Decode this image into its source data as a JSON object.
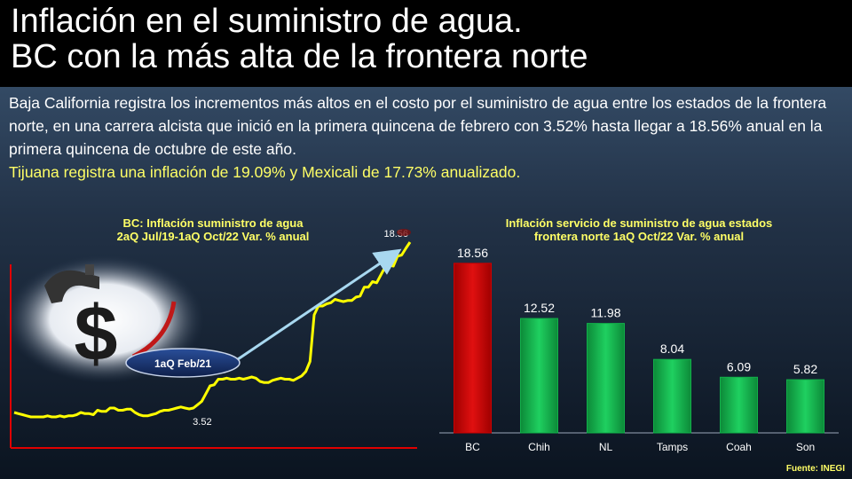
{
  "title": {
    "line1": "Inflación en el suministro de agua.",
    "line2": "BC con la más alta de la frontera norte"
  },
  "description": {
    "text": "Baja California registra los incrementos más altos en el costo por el suministro de agua entre los estados de la frontera norte, en una carrera alcista que inició en la primera quincena de febrero con 3.52% hasta llegar a 18.56% anual en la primera quincena de octubre de este año.",
    "highlight": "Tijuana registra una inflación de 19.09% y Mexicali de 17.73% anualizado."
  },
  "source": "Fuente: INEGI",
  "chart_data": [
    {
      "type": "line",
      "title": "BC: Inflación suministro de agua",
      "subtitle": "2aQ Jul/19-1aQ Oct/22 Var. % anual",
      "callout": "1aQ Feb/21",
      "start_label": "3.52",
      "end_label": "18.56",
      "line_color": "#ffff00",
      "values": [
        3.2,
        3.1,
        3.0,
        2.9,
        2.8,
        2.8,
        2.8,
        2.8,
        2.9,
        2.8,
        2.8,
        2.9,
        2.8,
        2.9,
        2.9,
        3.0,
        3.2,
        3.1,
        3.1,
        3.0,
        3.4,
        3.3,
        3.3,
        3.6,
        3.6,
        3.4,
        3.4,
        3.5,
        3.5,
        3.2,
        3.0,
        2.9,
        2.9,
        3.0,
        3.1,
        3.3,
        3.4,
        3.4,
        3.5,
        3.6,
        3.7,
        3.6,
        3.52,
        3.6,
        3.9,
        4.2,
        4.9,
        5.6,
        5.7,
        6.2,
        6.2,
        6.3,
        6.2,
        6.2,
        6.3,
        6.2,
        6.3,
        6.4,
        6.3,
        6.0,
        5.9,
        5.9,
        6.1,
        6.2,
        6.3,
        6.2,
        6.2,
        6.1,
        6.3,
        6.5,
        6.9,
        7.8,
        12.0,
        12.8,
        12.8,
        13.0,
        13.1,
        13.4,
        13.3,
        13.2,
        13.3,
        13.3,
        13.6,
        13.7,
        14.5,
        14.5,
        15.0,
        14.9,
        15.6,
        16.3,
        16.5,
        16.4,
        17.3,
        17.4,
        18.0,
        18.56
      ],
      "ylim": [
        0,
        20
      ]
    },
    {
      "type": "bar",
      "title": "Inflación servicio de suministro de agua estados",
      "subtitle": "frontera norte 1aQ Oct/22 Var. % anual",
      "categories": [
        "BC",
        "Chih",
        "NL",
        "Tamps",
        "Coah",
        "Son"
      ],
      "values": [
        18.56,
        12.52,
        11.98,
        8.04,
        6.09,
        5.82
      ],
      "value_labels": [
        "18.56",
        "12.52",
        "11.98",
        "8.04",
        "6.09",
        "5.82"
      ],
      "colors": [
        "#cc0000",
        "#12b04a",
        "#12b04a",
        "#12b04a",
        "#12b04a",
        "#12b04a"
      ],
      "ylim": [
        0,
        20
      ]
    }
  ]
}
